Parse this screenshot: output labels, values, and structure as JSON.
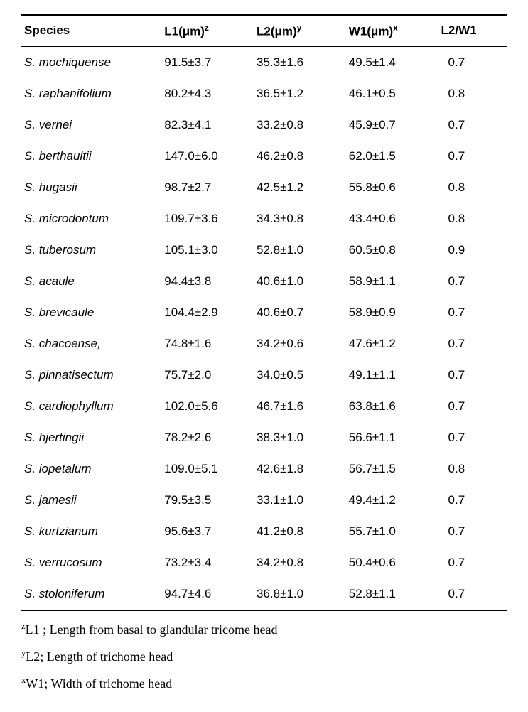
{
  "headers": {
    "species": "Species",
    "l1": "L1(μm)",
    "l1_sup": "z",
    "l2": "L2(μm)",
    "l2_sup": "y",
    "w1": "W1(μm)",
    "w1_sup": "x",
    "ratio": "L2/W1"
  },
  "rows": [
    {
      "species": "S. mochiquense",
      "l1": "91.5±3.7",
      "l2": "35.3±1.6",
      "w1": "49.5±1.4",
      "ratio": "0.7"
    },
    {
      "species": "S. raphanifolium",
      "l1": "80.2±4.3",
      "l2": "36.5±1.2",
      "w1": "46.1±0.5",
      "ratio": "0.8"
    },
    {
      "species": "S. vernei",
      "l1": "82.3±4.1",
      "l2": "33.2±0.8",
      "w1": "45.9±0.7",
      "ratio": "0.7"
    },
    {
      "species": "S. berthaultii",
      "l1": "147.0±6.0",
      "l2": "46.2±0.8",
      "w1": "62.0±1.5",
      "ratio": "0.7"
    },
    {
      "species": "S. hugasii",
      "l1": "98.7±2.7",
      "l2": "42.5±1.2",
      "w1": "55.8±0.6",
      "ratio": "0.8"
    },
    {
      "species": "S. microdontum",
      "l1": "109.7±3.6",
      "l2": "34.3±0.8",
      "w1": "43.4±0.6",
      "ratio": "0.8"
    },
    {
      "species": "S. tuberosum",
      "l1": "105.1±3.0",
      "l2": "52.8±1.0",
      "w1": "60.5±0.8",
      "ratio": "0.9"
    },
    {
      "species": "S. acaule",
      "l1": "94.4±3.8",
      "l2": "40.6±1.0",
      "w1": "58.9±1.1",
      "ratio": "0.7"
    },
    {
      "species": "S. brevicaule",
      "l1": "104.4±2.9",
      "l2": "40.6±0.7",
      "w1": "58.9±0.9",
      "ratio": "0.7"
    },
    {
      "species": "S. chacoense,",
      "l1": "74.8±1.6",
      "l2": "34.2±0.6",
      "w1": "47.6±1.2",
      "ratio": "0.7"
    },
    {
      "species": "S. pinnatisectum",
      "l1": "75.7±2.0",
      "l2": "34.0±0.5",
      "w1": "49.1±1.1",
      "ratio": "0.7"
    },
    {
      "species": "S. cardiophyllum",
      "l1": "102.0±5.6",
      "l2": "46.7±1.6",
      "w1": "63.8±1.6",
      "ratio": "0.7"
    },
    {
      "species": "S. hjertingii",
      "l1": "78.2±2.6",
      "l2": "38.3±1.0",
      "w1": "56.6±1.1",
      "ratio": "0.7"
    },
    {
      "species": "S. iopetalum",
      "l1": "109.0±5.1",
      "l2": "42.6±1.8",
      "w1": "56.7±1.5",
      "ratio": "0.8"
    },
    {
      "species": "S. jamesii",
      "l1": "79.5±3.5",
      "l2": "33.1±1.0",
      "w1": "49.4±1.2",
      "ratio": "0.7"
    },
    {
      "species": "S. kurtzianum",
      "l1": "95.6±3.7",
      "l2": "41.2±0.8",
      "w1": "55.7±1.0",
      "ratio": "0.7"
    },
    {
      "species": "S. verrucosum",
      "l1": "73.2±3.4",
      "l2": "34.2±0.8",
      "w1": "50.4±0.6",
      "ratio": "0.7"
    },
    {
      "species": "S. stoloniferum",
      "l1": "94.7±4.6",
      "l2": "36.8±1.0",
      "w1": "52.8±1.1",
      "ratio": "0.7"
    }
  ],
  "footnotes": {
    "z_sup": "z",
    "z_text": "L1 ; Length from basal to glandular tricome head",
    "y_sup": "y",
    "y_text": "L2; Length of trichome head",
    "x_sup": "x",
    "x_text": "W1; Width of trichome head"
  }
}
